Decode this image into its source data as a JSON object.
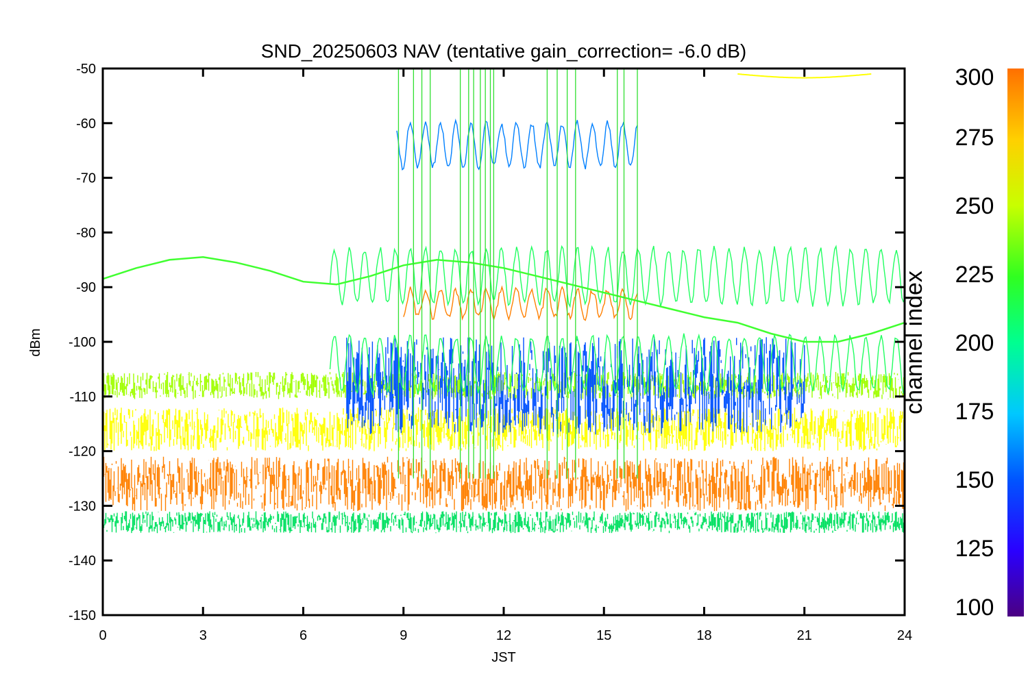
{
  "chart_data": {
    "type": "line",
    "title": "SND_20250603 NAV (tentative gain_correction= -6.0 dB)",
    "xlabel": "JST",
    "ylabel": "dBm",
    "xlim": [
      0,
      24
    ],
    "ylim": [
      -150,
      -50
    ],
    "xticks": [
      "0",
      "3",
      "6",
      "9",
      "12",
      "15",
      "18",
      "21",
      "24"
    ],
    "yticks": [
      "-50",
      "-60",
      "-70",
      "-80",
      "-90",
      "-100",
      "-110",
      "-120",
      "-130",
      "-140",
      "-150"
    ],
    "grid": false,
    "colorbar": {
      "label": "channel index",
      "range": [
        100,
        300
      ],
      "ticks": [
        "300",
        "275",
        "250",
        "225",
        "200",
        "175",
        "150",
        "125",
        "100"
      ]
    },
    "series": [
      {
        "color": "#ff8000",
        "level": -126,
        "spread": 5,
        "start": 0,
        "end": 24,
        "kind": "band"
      },
      {
        "color": "#ffff00",
        "level": -116,
        "spread": 4,
        "start": 0,
        "end": 24,
        "kind": "band"
      },
      {
        "color": "#a0ff00",
        "level": -108,
        "spread": 2.5,
        "start": 0,
        "end": 24,
        "kind": "band"
      },
      {
        "color": "#00e060",
        "level": -133,
        "spread": 2,
        "start": 0,
        "end": 24,
        "kind": "band"
      },
      {
        "color": "#0050ff",
        "level": -108,
        "spread": 9,
        "start": 7.3,
        "end": 21,
        "kind": "band"
      },
      {
        "color": "#0080ff",
        "level": -64,
        "spread": 4,
        "start": 8.8,
        "end": 16,
        "kind": "osc"
      },
      {
        "color": "#20ff60",
        "level": -88,
        "spread": 5,
        "start": 6.8,
        "end": 24,
        "kind": "osc"
      },
      {
        "color": "#20ff60",
        "level": -104,
        "spread": 5,
        "start": 6.8,
        "end": 24,
        "kind": "osc"
      },
      {
        "color": "#ff8000",
        "level": -93,
        "spread": 2.5,
        "start": 9,
        "end": 16,
        "kind": "osc"
      },
      {
        "color": "#ffff00",
        "level": -51,
        "spread": 0.7,
        "start": 19,
        "end": 23,
        "kind": "curve"
      },
      {
        "color": "#40ff30",
        "x": [
          0,
          1,
          2,
          3,
          4,
          5,
          6,
          7,
          8,
          9,
          10,
          11,
          12,
          13,
          14,
          15,
          16,
          17,
          18,
          19,
          20,
          21,
          22,
          23,
          24
        ],
        "values": [
          -88.5,
          -86.5,
          -85,
          -84.5,
          -85.5,
          -87,
          -89,
          -89.5,
          -88,
          -86,
          -85,
          -85.5,
          -86.5,
          -88,
          -89.5,
          -91,
          -92.5,
          -94,
          -95.5,
          -96.5,
          -98.5,
          -100,
          -100,
          -98.5,
          -96.5
        ],
        "kind": "line"
      }
    ]
  }
}
